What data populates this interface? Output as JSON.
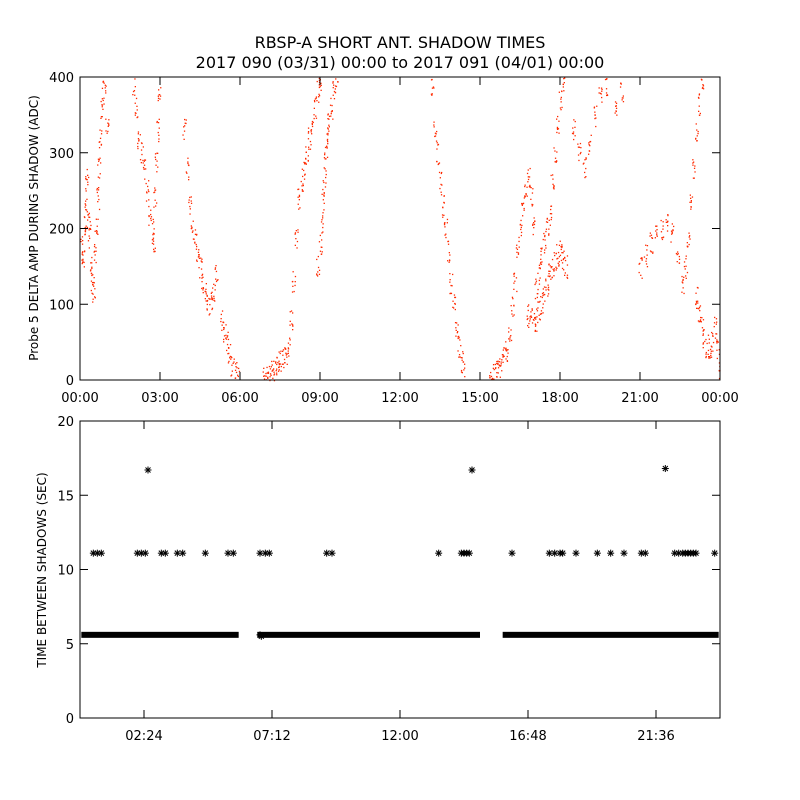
{
  "figure": {
    "title_line1": "RBSP-A SHORT ANT. SHADOW TIMES",
    "title_line2": "2017 090 (03/31) 00:00 to 2017 091 (04/01) 00:00"
  },
  "colors": {
    "top_points": "#ff2a00",
    "bottom_points": "#000000",
    "axes": "#000000",
    "background": "#ffffff"
  },
  "chart_data": [
    {
      "type": "scatter",
      "title": "",
      "xlabel": "",
      "ylabel": "Probe 5 DELTA AMP DURING SHADOW (ADC)",
      "xlim": [
        0,
        24
      ],
      "ylim": [
        0,
        400
      ],
      "x_unit": "hours",
      "x_ticks": [
        0,
        3,
        6,
        9,
        12,
        15,
        18,
        21,
        24
      ],
      "x_tick_labels": [
        "00:00",
        "03:00",
        "06:00",
        "09:00",
        "12:00",
        "15:00",
        "18:00",
        "21:00",
        "00:00"
      ],
      "y_ticks": [
        0,
        100,
        200,
        300,
        400
      ],
      "y_tick_labels": [
        "0",
        "100",
        "200",
        "300",
        "400"
      ],
      "grid": false,
      "legend": "none",
      "marker": "dot",
      "series": [
        {
          "color": "#ff2a00",
          "points": [
            [
              0.05,
              175
            ],
            [
              0.1,
              160
            ],
            [
              0.15,
              205
            ],
            [
              0.2,
              240
            ],
            [
              0.25,
              265
            ],
            [
              0.3,
              210
            ],
            [
              0.35,
              190
            ],
            [
              0.4,
              150
            ],
            [
              0.45,
              130
            ],
            [
              0.5,
              115
            ],
            [
              0.55,
              170
            ],
            [
              0.6,
              200
            ],
            [
              0.65,
              240
            ],
            [
              0.7,
              280
            ],
            [
              0.75,
              320
            ],
            [
              0.8,
              360
            ],
            [
              0.85,
              395
            ],
            [
              0.9,
              380
            ],
            [
              1.0,
              340
            ],
            [
              2.0,
              390
            ],
            [
              2.1,
              360
            ],
            [
              2.2,
              320
            ],
            [
              2.3,
              300
            ],
            [
              2.4,
              280
            ],
            [
              2.5,
              250
            ],
            [
              2.6,
              220
            ],
            [
              2.7,
              200
            ],
            [
              2.75,
              185
            ],
            [
              2.8,
              240
            ],
            [
              2.85,
              290
            ],
            [
              2.9,
              330
            ],
            [
              2.95,
              380
            ],
            [
              3.9,
              330
            ],
            [
              4.0,
              280
            ],
            [
              4.1,
              230
            ],
            [
              4.2,
              200
            ],
            [
              4.3,
              185
            ],
            [
              4.4,
              170
            ],
            [
              4.5,
              150
            ],
            [
              4.6,
              130
            ],
            [
              4.7,
              115
            ],
            [
              4.8,
              100
            ],
            [
              4.9,
              105
            ],
            [
              5.0,
              120
            ],
            [
              5.1,
              140
            ],
            [
              5.3,
              80
            ],
            [
              5.4,
              65
            ],
            [
              5.5,
              50
            ],
            [
              5.6,
              35
            ],
            [
              5.7,
              20
            ],
            [
              5.8,
              10
            ],
            [
              5.9,
              3
            ],
            [
              6.9,
              2
            ],
            [
              7.0,
              5
            ],
            [
              7.1,
              8
            ],
            [
              7.2,
              12
            ],
            [
              7.3,
              15
            ],
            [
              7.4,
              20
            ],
            [
              7.5,
              25
            ],
            [
              7.6,
              30
            ],
            [
              7.7,
              35
            ],
            [
              7.8,
              45
            ],
            [
              7.9,
              80
            ],
            [
              8.0,
              130
            ],
            [
              8.1,
              190
            ],
            [
              8.2,
              240
            ],
            [
              8.3,
              265
            ],
            [
              8.4,
              280
            ],
            [
              8.5,
              300
            ],
            [
              8.6,
              320
            ],
            [
              8.7,
              340
            ],
            [
              8.8,
              360
            ],
            [
              8.9,
              380
            ],
            [
              9.0,
              395
            ],
            [
              8.9,
              150
            ],
            [
              9.0,
              180
            ],
            [
              9.05,
              210
            ],
            [
              9.1,
              240
            ],
            [
              9.15,
              270
            ],
            [
              9.2,
              300
            ],
            [
              9.25,
              320
            ],
            [
              9.3,
              340
            ],
            [
              9.4,
              360
            ],
            [
              9.5,
              385
            ],
            [
              9.6,
              400
            ],
            [
              13.2,
              390
            ],
            [
              13.3,
              330
            ],
            [
              13.4,
              300
            ],
            [
              13.5,
              260
            ],
            [
              13.6,
              230
            ],
            [
              13.7,
              200
            ],
            [
              13.8,
              170
            ],
            [
              13.9,
              130
            ],
            [
              14.0,
              100
            ],
            [
              14.1,
              70
            ],
            [
              14.2,
              45
            ],
            [
              14.3,
              25
            ],
            [
              14.4,
              10
            ],
            [
              15.4,
              4
            ],
            [
              15.5,
              8
            ],
            [
              15.6,
              12
            ],
            [
              15.7,
              18
            ],
            [
              15.8,
              25
            ],
            [
              15.9,
              32
            ],
            [
              16.0,
              40
            ],
            [
              16.1,
              60
            ],
            [
              16.2,
              95
            ],
            [
              16.3,
              130
            ],
            [
              16.4,
              170
            ],
            [
              16.5,
              200
            ],
            [
              16.6,
              230
            ],
            [
              16.7,
              255
            ],
            [
              16.8,
              270
            ],
            [
              16.9,
              245
            ],
            [
              17.0,
              200
            ],
            [
              16.8,
              85
            ],
            [
              16.9,
              80
            ],
            [
              17.0,
              75
            ],
            [
              17.1,
              80
            ],
            [
              17.2,
              90
            ],
            [
              17.3,
              100
            ],
            [
              17.4,
              110
            ],
            [
              17.5,
              125
            ],
            [
              17.6,
              140
            ],
            [
              17.7,
              150
            ],
            [
              17.8,
              160
            ],
            [
              17.9,
              165
            ],
            [
              18.0,
              170
            ],
            [
              18.1,
              160
            ],
            [
              18.2,
              150
            ],
            [
              17.1,
              120
            ],
            [
              17.2,
              140
            ],
            [
              17.3,
              160
            ],
            [
              17.4,
              180
            ],
            [
              17.5,
              200
            ],
            [
              17.6,
              220
            ],
            [
              17.7,
              260
            ],
            [
              17.8,
              300
            ],
            [
              17.9,
              340
            ],
            [
              18.0,
              370
            ],
            [
              18.1,
              395
            ],
            [
              18.5,
              330
            ],
            [
              18.7,
              300
            ],
            [
              18.9,
              280
            ],
            [
              19.1,
              310
            ],
            [
              19.3,
              350
            ],
            [
              19.5,
              380
            ],
            [
              19.7,
              390
            ],
            [
              20.1,
              360
            ],
            [
              20.3,
              380
            ],
            [
              21.0,
              150
            ],
            [
              21.2,
              165
            ],
            [
              21.4,
              180
            ],
            [
              21.6,
              190
            ],
            [
              21.8,
              200
            ],
            [
              22.0,
              205
            ],
            [
              22.2,
              195
            ],
            [
              22.4,
              170
            ],
            [
              22.6,
              130
            ],
            [
              22.7,
              150
            ],
            [
              22.8,
              180
            ],
            [
              22.9,
              230
            ],
            [
              23.0,
              280
            ],
            [
              23.1,
              330
            ],
            [
              23.2,
              365
            ],
            [
              23.3,
              390
            ],
            [
              23.1,
              110
            ],
            [
              23.2,
              90
            ],
            [
              23.3,
              70
            ],
            [
              23.4,
              55
            ],
            [
              23.5,
              45
            ],
            [
              23.6,
              40
            ],
            [
              23.7,
              50
            ],
            [
              23.8,
              70
            ],
            [
              23.9,
              40
            ],
            [
              24.0,
              10
            ]
          ]
        }
      ]
    },
    {
      "type": "scatter",
      "title": "",
      "xlabel": "",
      "ylabel": "TIME BETWEEN SHADOWS (SEC)",
      "xlim": [
        0,
        24
      ],
      "ylim": [
        0,
        20
      ],
      "x_unit": "hours",
      "x_ticks": [
        2.4,
        7.2,
        12.0,
        16.8,
        21.6
      ],
      "x_tick_labels": [
        "02:24",
        "07:12",
        "12:00",
        "16:48",
        "21:36"
      ],
      "y_ticks": [
        0,
        5,
        10,
        15,
        20
      ],
      "y_tick_labels": [
        "0",
        "5",
        "10",
        "15",
        "20"
      ],
      "grid": false,
      "legend": "none",
      "marker": "asterisk",
      "series": [
        {
          "color": "#000000",
          "baseline": {
            "y": 5.6,
            "x_ranges": [
              [
                0.05,
                5.95
              ],
              [
                6.65,
                15.0
              ],
              [
                15.85,
                23.95
              ]
            ]
          },
          "points": [
            [
              0.5,
              11.1
            ],
            [
              0.65,
              11.1
            ],
            [
              0.8,
              11.1
            ],
            [
              2.15,
              11.1
            ],
            [
              2.3,
              11.1
            ],
            [
              2.45,
              11.1
            ],
            [
              2.55,
              16.7
            ],
            [
              3.05,
              11.1
            ],
            [
              3.2,
              11.1
            ],
            [
              3.65,
              11.1
            ],
            [
              3.85,
              11.1
            ],
            [
              4.7,
              11.1
            ],
            [
              5.55,
              11.1
            ],
            [
              5.75,
              11.1
            ],
            [
              6.75,
              11.1
            ],
            [
              6.95,
              11.1
            ],
            [
              7.1,
              11.1
            ],
            [
              6.75,
              5.6
            ],
            [
              6.8,
              5.5
            ],
            [
              9.25,
              11.1
            ],
            [
              9.45,
              11.1
            ],
            [
              13.45,
              11.1
            ],
            [
              14.3,
              11.1
            ],
            [
              14.4,
              11.1
            ],
            [
              14.5,
              11.1
            ],
            [
              14.6,
              11.1
            ],
            [
              14.7,
              16.7
            ],
            [
              16.2,
              11.1
            ],
            [
              17.6,
              11.1
            ],
            [
              17.8,
              11.1
            ],
            [
              18.0,
              11.1
            ],
            [
              18.1,
              11.1
            ],
            [
              18.6,
              11.1
            ],
            [
              19.4,
              11.1
            ],
            [
              19.9,
              11.1
            ],
            [
              20.4,
              11.1
            ],
            [
              21.05,
              11.1
            ],
            [
              21.2,
              11.1
            ],
            [
              21.95,
              16.8
            ],
            [
              22.3,
              11.1
            ],
            [
              22.45,
              11.1
            ],
            [
              22.6,
              11.1
            ],
            [
              22.7,
              11.1
            ],
            [
              22.8,
              11.1
            ],
            [
              22.9,
              11.1
            ],
            [
              23.0,
              11.1
            ],
            [
              23.1,
              11.1
            ],
            [
              23.8,
              11.1
            ]
          ]
        }
      ]
    }
  ]
}
